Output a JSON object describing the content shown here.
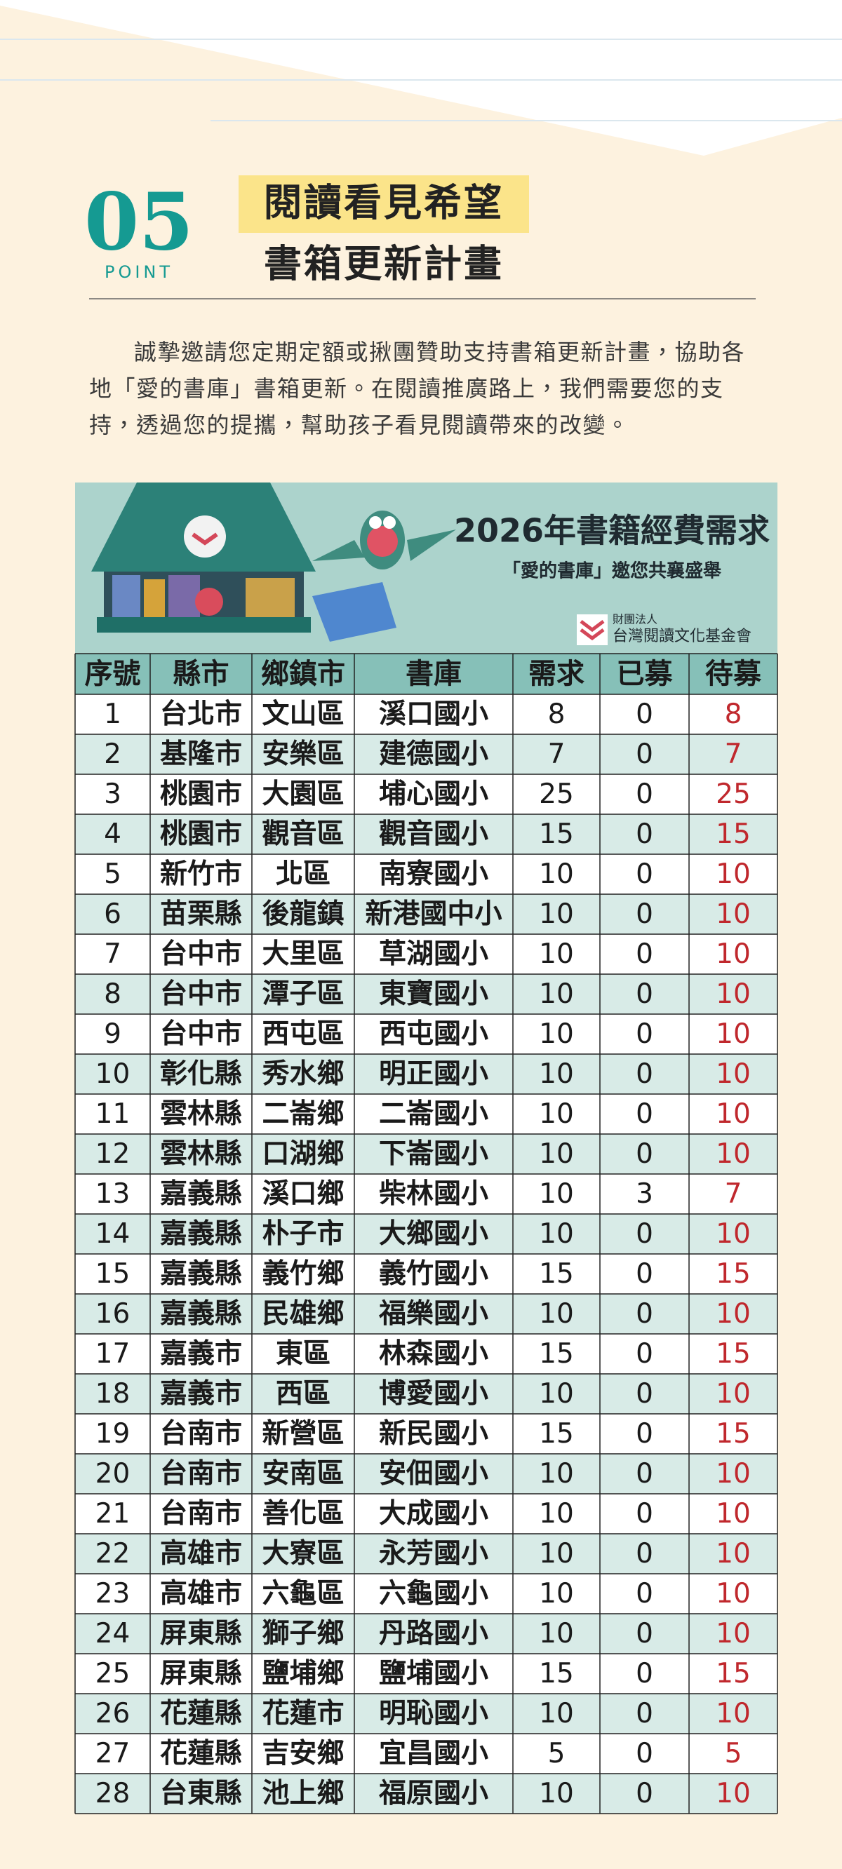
{
  "header": {
    "number": "05",
    "point": "POINT",
    "title": "閱讀看見希望",
    "subtitle": "書箱更新計畫"
  },
  "intro": "誠摯邀請您定期定額或揪團贊助支持書箱更新計畫，協助各地「愛的書庫」書箱更新。在閱讀推廣路上，我們需要您的支持，透過您的提攜，幫助孩子看見閱讀帶來的改變。",
  "banner": {
    "title": "2026年書籍經費需求",
    "subtitle": "「愛的書庫」邀您共襄盛舉",
    "org_prefix": "財團法人",
    "org_name": "台灣閱讀文化基金會"
  },
  "table": {
    "headers": [
      "序號",
      "縣市",
      "鄉鎮市",
      "書庫",
      "需求",
      "已募",
      "待募"
    ],
    "rows": [
      [
        1,
        "台北市",
        "文山區",
        "溪口國小",
        8,
        0,
        8
      ],
      [
        2,
        "基隆市",
        "安樂區",
        "建德國小",
        7,
        0,
        7
      ],
      [
        3,
        "桃園市",
        "大園區",
        "埔心國小",
        25,
        0,
        25
      ],
      [
        4,
        "桃園市",
        "觀音區",
        "觀音國小",
        15,
        0,
        15
      ],
      [
        5,
        "新竹市",
        "北區",
        "南寮國小",
        10,
        0,
        10
      ],
      [
        6,
        "苗栗縣",
        "後龍鎮",
        "新港國中小",
        10,
        0,
        10
      ],
      [
        7,
        "台中市",
        "大里區",
        "草湖國小",
        10,
        0,
        10
      ],
      [
        8,
        "台中市",
        "潭子區",
        "東寶國小",
        10,
        0,
        10
      ],
      [
        9,
        "台中市",
        "西屯區",
        "西屯國小",
        10,
        0,
        10
      ],
      [
        10,
        "彰化縣",
        "秀水鄉",
        "明正國小",
        10,
        0,
        10
      ],
      [
        11,
        "雲林縣",
        "二崙鄉",
        "二崙國小",
        10,
        0,
        10
      ],
      [
        12,
        "雲林縣",
        "口湖鄉",
        "下崙國小",
        10,
        0,
        10
      ],
      [
        13,
        "嘉義縣",
        "溪口鄉",
        "柴林國小",
        10,
        3,
        7
      ],
      [
        14,
        "嘉義縣",
        "朴子市",
        "大鄉國小",
        10,
        0,
        10
      ],
      [
        15,
        "嘉義縣",
        "義竹鄉",
        "義竹國小",
        15,
        0,
        15
      ],
      [
        16,
        "嘉義縣",
        "民雄鄉",
        "福樂國小",
        10,
        0,
        10
      ],
      [
        17,
        "嘉義市",
        "東區",
        "林森國小",
        15,
        0,
        15
      ],
      [
        18,
        "嘉義市",
        "西區",
        "博愛國小",
        10,
        0,
        10
      ],
      [
        19,
        "台南市",
        "新營區",
        "新民國小",
        15,
        0,
        15
      ],
      [
        20,
        "台南市",
        "安南區",
        "安佃國小",
        10,
        0,
        10
      ],
      [
        21,
        "台南市",
        "善化區",
        "大成國小",
        10,
        0,
        10
      ],
      [
        22,
        "高雄市",
        "大寮區",
        "永芳國小",
        10,
        0,
        10
      ],
      [
        23,
        "高雄市",
        "六龜區",
        "六龜國小",
        10,
        0,
        10
      ],
      [
        24,
        "屏東縣",
        "獅子鄉",
        "丹路國小",
        10,
        0,
        10
      ],
      [
        25,
        "屏東縣",
        "鹽埔鄉",
        "鹽埔國小",
        15,
        0,
        15
      ],
      [
        26,
        "花蓮縣",
        "花蓮市",
        "明恥國小",
        10,
        0,
        10
      ],
      [
        27,
        "花蓮縣",
        "吉安鄉",
        "宜昌國小",
        5,
        0,
        5
      ],
      [
        28,
        "台東縣",
        "池上鄉",
        "福原國小",
        10,
        0,
        10
      ]
    ]
  }
}
